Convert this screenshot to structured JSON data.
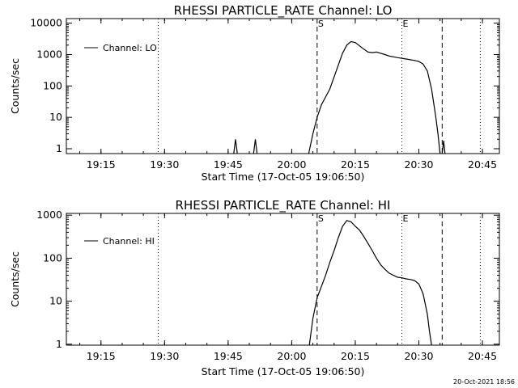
{
  "footer_date": "20-Oct-2021 18:56",
  "colors": {
    "background": "#ffffff",
    "foreground": "#000000"
  },
  "chart_data": [
    {
      "type": "line",
      "title": "RHESSI PARTICLE_RATE Channel: LO",
      "xlabel": "Start Time (17-Oct-05 19:06:50)",
      "ylabel": "Counts/sec",
      "yscale": "log",
      "xlim": [
        "19:06:50",
        "20:49:00"
      ],
      "ylim": [
        0.7,
        14000
      ],
      "xticks": [
        "19:15",
        "19:30",
        "19:45",
        "20:00",
        "20:15",
        "20:30",
        "20:45"
      ],
      "yticks": [
        "1",
        "10",
        "100",
        "1000",
        "10000"
      ],
      "legend": {
        "label": "Channel: LO",
        "placement": "top-left"
      },
      "vlines": [
        {
          "time": "19:28:30",
          "style": "dotted"
        },
        {
          "time": "20:06:00",
          "style": "dashed",
          "label": "S"
        },
        {
          "time": "20:26:00",
          "style": "dotted",
          "label": "E"
        },
        {
          "time": "20:35:30",
          "style": "dashed"
        },
        {
          "time": "20:44:30",
          "style": "dotted"
        }
      ],
      "series": [
        {
          "name": "Channel: LO",
          "segments": [
            [
              [
                "19:46:20",
                0.7
              ],
              [
                "19:46:45",
                2.0
              ],
              [
                "19:47:10",
                0.7
              ]
            ],
            [
              [
                "19:51:00",
                0.7
              ],
              [
                "19:51:25",
                2.0
              ],
              [
                "19:51:50",
                0.7
              ]
            ],
            [
              [
                "20:04:00",
                0.7
              ],
              [
                "20:05:00",
                3.0
              ],
              [
                "20:06:00",
                10
              ],
              [
                "20:07:00",
                25
              ],
              [
                "20:09:00",
                80
              ],
              [
                "20:10:30",
                300
              ],
              [
                "20:12:00",
                1100
              ],
              [
                "20:13:00",
                2000
              ],
              [
                "20:14:00",
                2600
              ],
              [
                "20:15:00",
                2400
              ],
              [
                "20:16:00",
                1900
              ],
              [
                "20:17:00",
                1500
              ],
              [
                "20:18:00",
                1200
              ],
              [
                "20:19:00",
                1150
              ],
              [
                "20:20:00",
                1200
              ],
              [
                "20:21:00",
                1100
              ],
              [
                "20:22:00",
                1000
              ],
              [
                "20:23:00",
                900
              ],
              [
                "20:25:00",
                800
              ],
              [
                "20:27:00",
                720
              ],
              [
                "20:29:00",
                650
              ],
              [
                "20:30:00",
                600
              ],
              [
                "20:31:00",
                500
              ],
              [
                "20:32:00",
                300
              ],
              [
                "20:33:00",
                80
              ],
              [
                "20:34:00",
                10
              ],
              [
                "20:34:30",
                3
              ],
              [
                "20:35:00",
                0.7
              ]
            ],
            [
              [
                "20:35:30",
                0.7
              ],
              [
                "20:35:50",
                1.8
              ],
              [
                "20:36:10",
                0.7
              ]
            ]
          ]
        }
      ]
    },
    {
      "type": "line",
      "title": "RHESSI PARTICLE_RATE Channel: HI",
      "xlabel": "Start Time (17-Oct-05 19:06:50)",
      "ylabel": "Counts/sec",
      "yscale": "log",
      "xlim": [
        "19:06:50",
        "20:49:00"
      ],
      "ylim": [
        0.95,
        1100
      ],
      "xticks": [
        "19:15",
        "19:30",
        "19:45",
        "20:00",
        "20:15",
        "20:30",
        "20:45"
      ],
      "yticks": [
        "1",
        "10",
        "100",
        "1000"
      ],
      "legend": {
        "label": "Channel: HI",
        "placement": "top-left"
      },
      "vlines": [
        {
          "time": "19:28:30",
          "style": "dotted"
        },
        {
          "time": "20:06:00",
          "style": "dashed",
          "label": "S"
        },
        {
          "time": "20:26:00",
          "style": "dotted",
          "label": "E"
        },
        {
          "time": "20:35:30",
          "style": "dashed"
        },
        {
          "time": "20:44:30",
          "style": "dotted"
        }
      ],
      "series": [
        {
          "name": "Channel: HI",
          "segments": [
            [
              [
                "20:04:10",
                0.95
              ],
              [
                "20:05:00",
                4.0
              ],
              [
                "20:06:00",
                12
              ],
              [
                "20:07:00",
                22
              ],
              [
                "20:08:00",
                40
              ],
              [
                "20:09:00",
                80
              ],
              [
                "20:10:00",
                150
              ],
              [
                "20:11:00",
                300
              ],
              [
                "20:12:00",
                550
              ],
              [
                "20:13:00",
                750
              ],
              [
                "20:14:00",
                700
              ],
              [
                "20:15:00",
                550
              ],
              [
                "20:16:00",
                450
              ],
              [
                "20:17:00",
                320
              ],
              [
                "20:18:00",
                220
              ],
              [
                "20:19:00",
                150
              ],
              [
                "20:20:00",
                100
              ],
              [
                "20:21:00",
                70
              ],
              [
                "20:22:00",
                55
              ],
              [
                "20:23:00",
                45
              ],
              [
                "20:24:00",
                40
              ],
              [
                "20:25:00",
                36
              ],
              [
                "20:26:00",
                35
              ],
              [
                "20:27:00",
                33
              ],
              [
                "20:28:00",
                32
              ],
              [
                "20:29:00",
                30
              ],
              [
                "20:30:00",
                25
              ],
              [
                "20:31:00",
                15
              ],
              [
                "20:32:00",
                5
              ],
              [
                "20:32:30",
                2
              ],
              [
                "20:33:00",
                0.95
              ]
            ]
          ]
        }
      ]
    }
  ]
}
